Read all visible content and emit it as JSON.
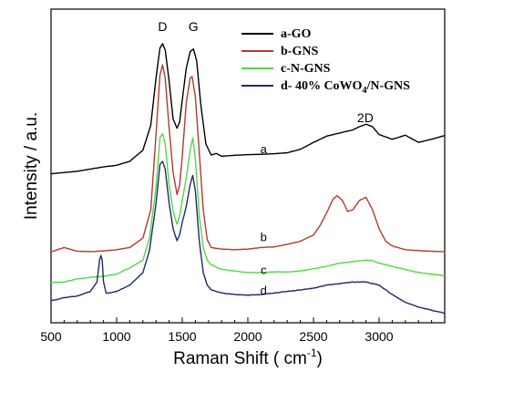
{
  "chart_data": {
    "type": "line",
    "xlabel": "Raman Shift  ( cm",
    "xlabel_sup": "-1",
    "xlabel_end": ")",
    "ylabel": "Intensity / a.u.",
    "xlim": [
      500,
      3500
    ],
    "ylim": [
      0,
      100
    ],
    "x_ticks": [
      "500",
      "1000",
      "1500",
      "2000",
      "2500",
      "3000"
    ],
    "x_tick_values": [
      500,
      1000,
      1500,
      2000,
      2500,
      3000
    ],
    "y_ticks_shown": false,
    "legend_position": "top-right",
    "peak_labels": [
      {
        "text": "D",
        "x": 1350,
        "y": 93
      },
      {
        "text": "G",
        "x": 1585,
        "y": 93
      },
      {
        "text": "2D",
        "x": 2895,
        "y": 64
      }
    ],
    "series": [
      {
        "name": "a-GO",
        "label": "a",
        "label_x": 2120,
        "label_y": 54,
        "color": "#000000",
        "x": [
          500,
          700,
          900,
          1000,
          1100,
          1200,
          1260,
          1300,
          1330,
          1350,
          1370,
          1400,
          1430,
          1460,
          1480,
          1500,
          1530,
          1560,
          1585,
          1610,
          1640,
          1680,
          1720,
          1760,
          1800,
          1900,
          2000,
          2100,
          2200,
          2300,
          2400,
          2500,
          2600,
          2700,
          2800,
          2850,
          2900,
          2950,
          3000,
          3100,
          3200,
          3300,
          3400,
          3500
        ],
        "y": [
          47.5,
          48.3,
          49.7,
          50.2,
          51.5,
          55,
          63,
          78,
          87.6,
          89,
          87,
          77,
          65,
          62,
          64,
          71,
          81,
          86.4,
          87.3,
          83.5,
          70,
          57,
          53.5,
          54,
          53.1,
          53.4,
          53.6,
          53.7,
          53.9,
          54.2,
          55.3,
          57.5,
          59.5,
          60.5,
          61.5,
          62.5,
          63.3,
          62.5,
          60,
          58.5,
          59.8,
          57.5,
          58.5,
          59.7
        ]
      },
      {
        "name": "b-GNS",
        "label": "b",
        "label_x": 2120,
        "label_y": 26,
        "color": "#b33a2a",
        "x": [
          500,
          600,
          700,
          800,
          900,
          1000,
          1100,
          1200,
          1260,
          1300,
          1330,
          1350,
          1370,
          1400,
          1430,
          1460,
          1480,
          1500,
          1530,
          1560,
          1575,
          1600,
          1630,
          1660,
          1690,
          1720,
          1800,
          1900,
          2000,
          2100,
          2200,
          2300,
          2400,
          2500,
          2550,
          2600,
          2650,
          2680,
          2720,
          2760,
          2800,
          2850,
          2900,
          2950,
          3000,
          3050,
          3100,
          3200,
          3300,
          3400,
          3500
        ],
        "y": [
          22.6,
          24,
          22.8,
          22.7,
          22.9,
          23.3,
          24,
          27,
          36,
          60,
          79,
          82.2,
          78,
          62,
          48,
          40.9,
          44,
          53,
          70,
          78,
          78.5,
          72,
          54,
          36,
          26.5,
          24,
          23.5,
          23.3,
          23.5,
          24,
          24.2,
          25,
          26,
          28,
          31,
          35,
          39.5,
          40.5,
          39,
          35.5,
          36,
          39,
          40,
          36,
          30,
          26,
          24.5,
          23.3,
          23,
          22.8,
          22.7
        ]
      },
      {
        "name": "c-N-GNS",
        "label": "c",
        "label_x": 2120,
        "label_y": 15.5,
        "color": "#55d64a",
        "x": [
          500,
          600,
          700,
          800,
          900,
          1000,
          1100,
          1200,
          1250,
          1300,
          1330,
          1350,
          1370,
          1400,
          1430,
          1460,
          1480,
          1500,
          1530,
          1560,
          1580,
          1600,
          1630,
          1660,
          1690,
          1720,
          1800,
          1900,
          2000,
          2100,
          2200,
          2300,
          2400,
          2500,
          2600,
          2700,
          2800,
          2900,
          2950,
          3000,
          3100,
          3200,
          3300,
          3400,
          3500
        ],
        "y": [
          12.8,
          13,
          14,
          14.5,
          14.8,
          15.5,
          17.5,
          20,
          27,
          43,
          59,
          60.3,
          57,
          44,
          35.5,
          31.4,
          34,
          39,
          46,
          55,
          59,
          52,
          34,
          24,
          20,
          18.5,
          17,
          16.5,
          16,
          16,
          16.2,
          16.2,
          16.5,
          17.2,
          18,
          19,
          19.5,
          20,
          19.8,
          19,
          18,
          17,
          16,
          15.5,
          15
        ]
      },
      {
        "name": "d- 40% CoWO",
        "name_sub": "4",
        "name_end": "/N-GNS",
        "label": "d",
        "label_x": 2120,
        "label_y": 9,
        "color": "#1c2a6a",
        "x": [
          500,
          600,
          700,
          800,
          850,
          870,
          880,
          890,
          900,
          920,
          950,
          1000,
          1100,
          1200,
          1250,
          1300,
          1330,
          1350,
          1370,
          1400,
          1430,
          1460,
          1480,
          1500,
          1530,
          1560,
          1580,
          1600,
          1630,
          1660,
          1690,
          1720,
          1800,
          1900,
          2000,
          2100,
          2200,
          2300,
          2400,
          2500,
          2600,
          2700,
          2800,
          2900,
          2950,
          3000,
          3100,
          3200,
          3300,
          3400,
          3500
        ],
        "y": [
          7,
          8,
          8.5,
          10,
          13,
          20,
          21.5,
          20,
          13,
          9.5,
          9.5,
          10,
          12,
          16,
          23,
          38,
          50.5,
          51.5,
          49,
          38,
          30,
          26.2,
          28,
          32,
          37,
          44,
          47,
          42,
          26,
          16,
          12,
          10.5,
          9.5,
          9,
          8.8,
          9,
          9.5,
          10,
          10.5,
          11,
          12,
          12.5,
          13,
          13,
          12.5,
          12,
          9,
          6.5,
          5,
          4,
          3
        ]
      }
    ]
  }
}
